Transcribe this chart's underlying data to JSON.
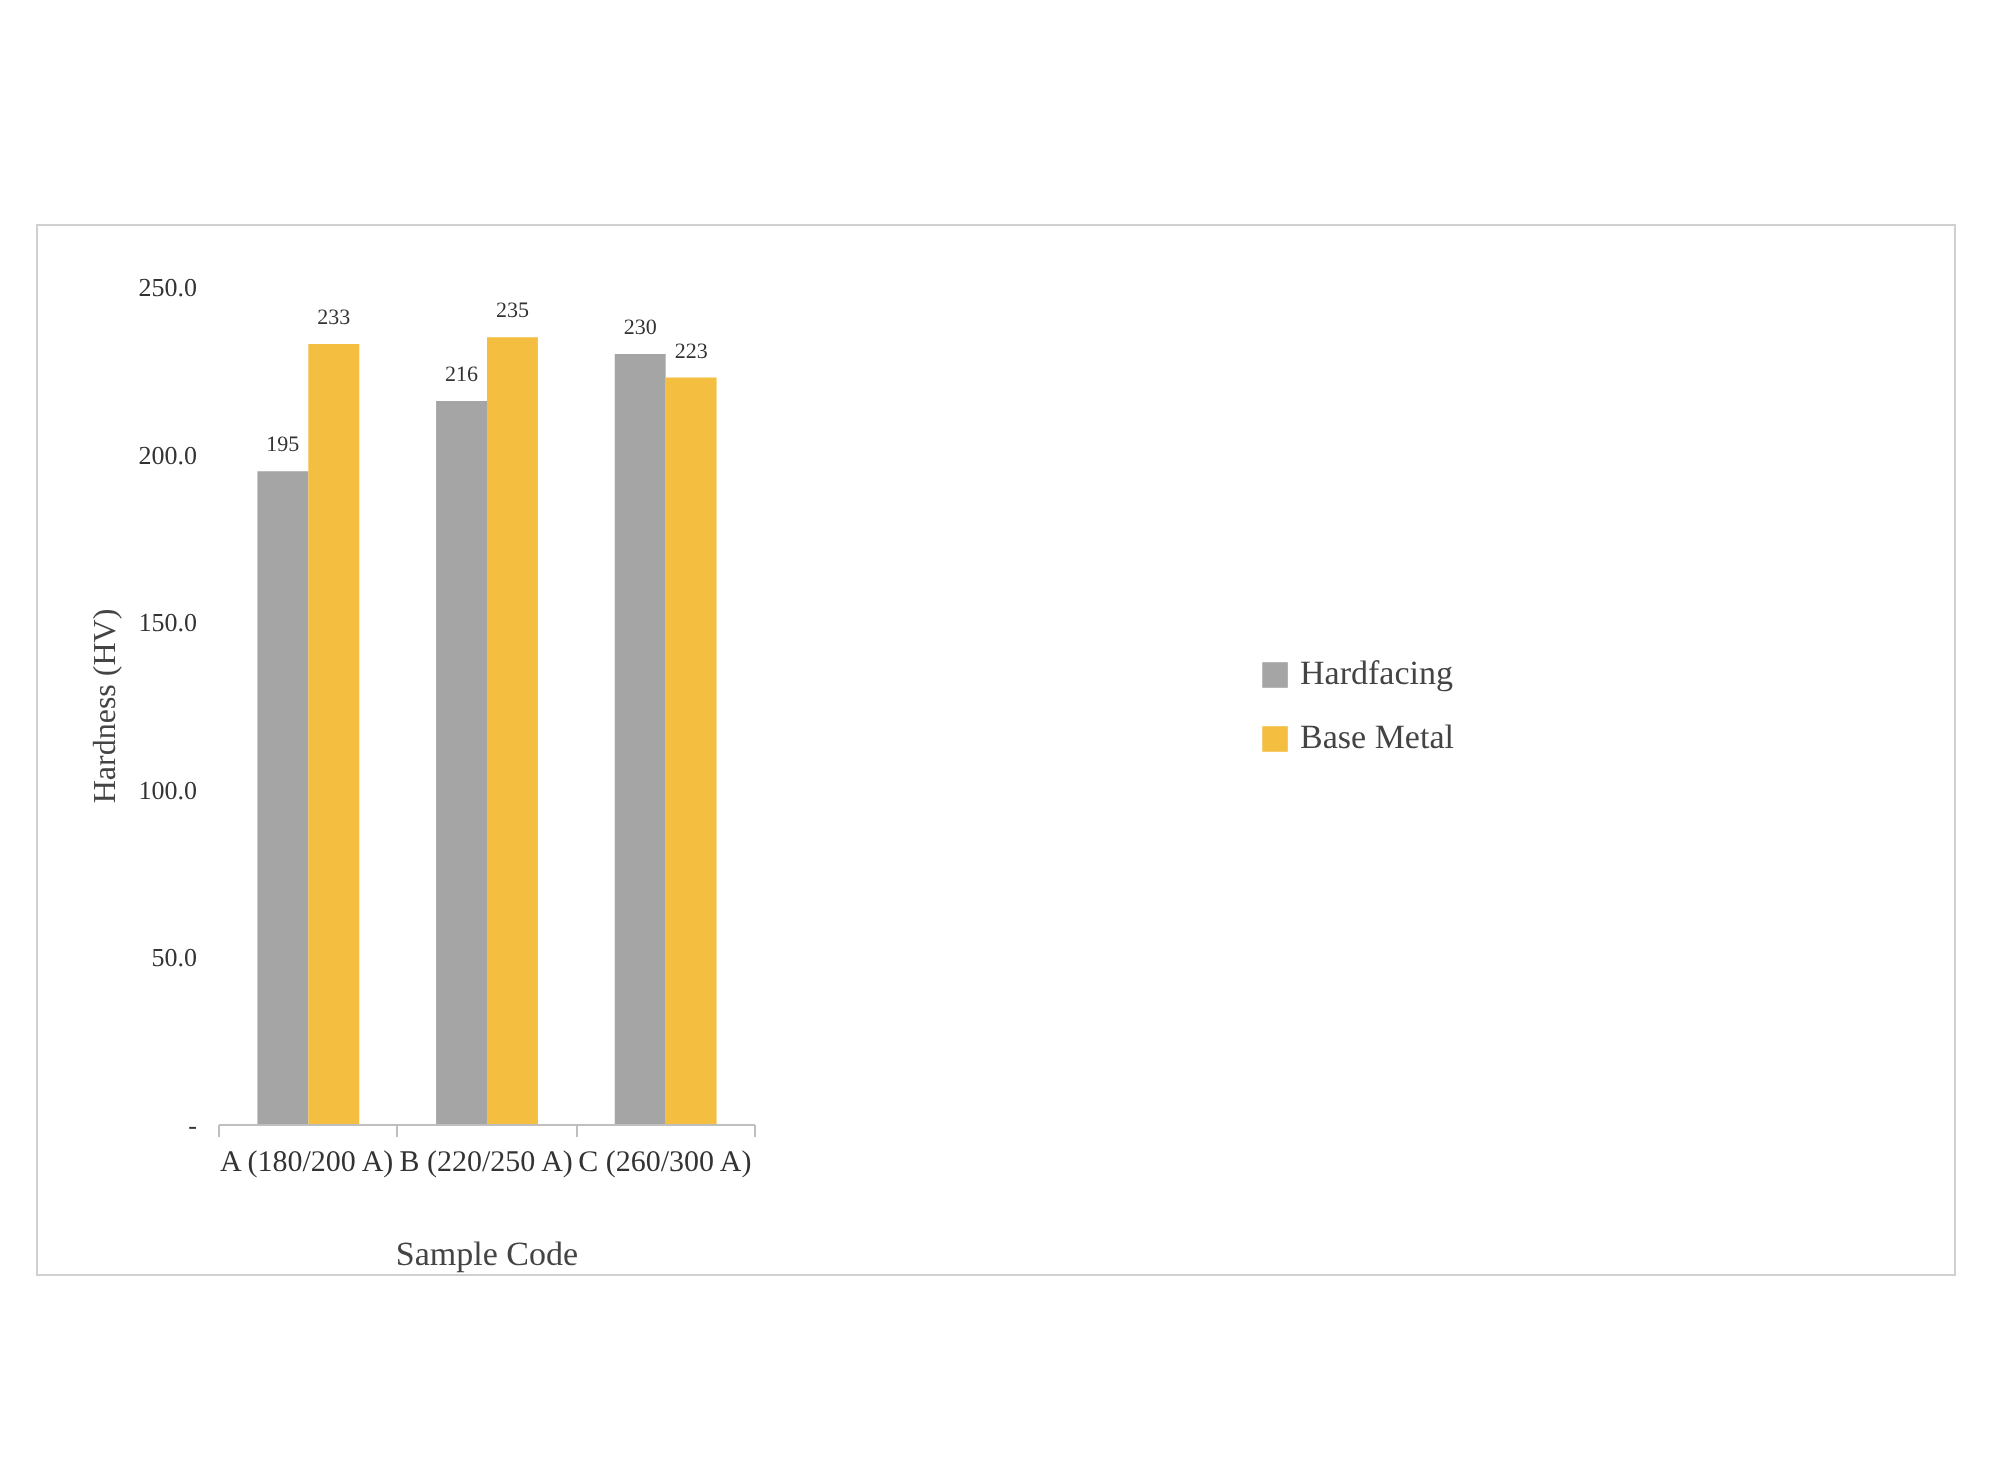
{
  "chart_data": {
    "type": "bar",
    "xlabel": "Sample Code",
    "ylabel": "Hardness (HV)",
    "categories": [
      "A (180/200 A)",
      "B (220/250 A)",
      "C (260/300 A)"
    ],
    "series": [
      {
        "name": "Hardfacing",
        "color": "#a5a5a5",
        "values": [
          195,
          216,
          230
        ]
      },
      {
        "name": "Base Metal",
        "color": "#f4bf41",
        "values": [
          233,
          235,
          223
        ]
      }
    ],
    "ylim": [
      0,
      250
    ],
    "yticks": [
      {
        "value": 0,
        "label": "-"
      },
      {
        "value": 50,
        "label": "50.0"
      },
      {
        "value": 100,
        "label": "100.0"
      },
      {
        "value": 150,
        "label": "150.0"
      },
      {
        "value": 200,
        "label": "200.0"
      },
      {
        "value": 250,
        "label": "250.0"
      }
    ],
    "data_labels": true,
    "grid": false,
    "legend": "right"
  }
}
